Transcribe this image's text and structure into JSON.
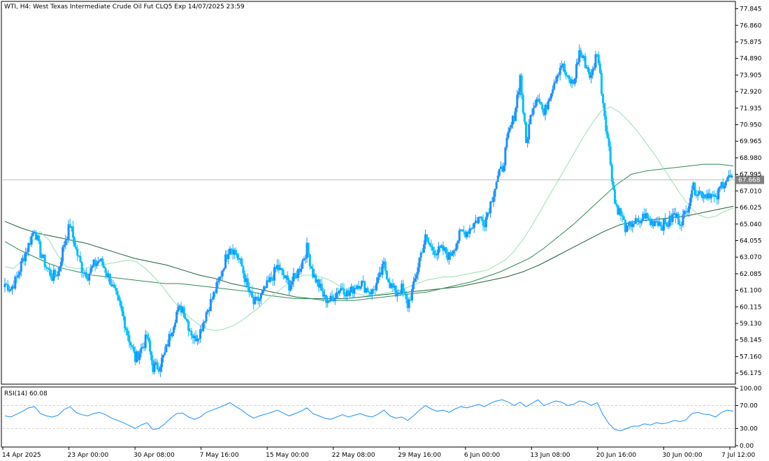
{
  "header": {
    "title": "WTI, H4:  West Texas Intermediate Crude Oil Fut CLQ5 Exp 14/07/2025 23:59"
  },
  "rsi_panel": {
    "label": "RSI(14) 60.08"
  },
  "colors": {
    "bull": "#1e90ff",
    "bear": "#00bfff",
    "ma_fast": "#98e0b0",
    "ma_mid": "#2e8b57",
    "ma_slow": "#1f5f3a",
    "rsi": "#1e90ff",
    "price_line": "#a9a9a9",
    "last_price_bg": "#808080"
  },
  "chart_data": [
    {
      "type": "candlestick",
      "name": "WTI H4",
      "ylim": [
        55.6,
        78.2
      ],
      "y_ticks": [
        "77.845",
        "76.860",
        "75.875",
        "74.890",
        "73.905",
        "72.920",
        "71.935",
        "70.950",
        "69.965",
        "68.980",
        "67.995",
        "67.010",
        "66.025",
        "65.040",
        "64.055",
        "63.070",
        "62.085",
        "61.100",
        "60.115",
        "59.130",
        "58.145",
        "57.160",
        "56.175"
      ],
      "last_price": "67.668",
      "x_tick_labels": [
        "14 Apr 2025",
        "23 Apr 00:00",
        "30 Apr 08:00",
        "7 May 16:00",
        "15 May 00:00",
        "22 May 08:00",
        "29 May 16:00",
        "6 Jun 00:00",
        "13 Jun 08:00",
        "20 Jun 16:00",
        "30 Jun 00:00",
        "7 Jul 12:00"
      ],
      "close_path": [
        61.5,
        61.2,
        61.8,
        62.9,
        63.8,
        64.8,
        63.3,
        62.5,
        61.9,
        62.2,
        63.9,
        65.0,
        63.5,
        62.4,
        62.0,
        62.6,
        62.9,
        62.3,
        61.5,
        60.5,
        59.5,
        58.2,
        57.0,
        57.6,
        58.3,
        56.5,
        56.6,
        57.3,
        58.6,
        59.8,
        60.1,
        59.0,
        58.2,
        58.7,
        59.8,
        60.6,
        61.5,
        62.7,
        63.8,
        63.3,
        62.5,
        61.2,
        60.3,
        60.6,
        61.2,
        61.8,
        62.5,
        62.0,
        61.4,
        61.9,
        62.6,
        63.6,
        62.1,
        61.4,
        60.6,
        60.5,
        61.0,
        61.3,
        60.8,
        61.3,
        61.6,
        61.2,
        61.0,
        61.6,
        62.6,
        61.5,
        60.9,
        61.2,
        60.2,
        61.3,
        63.0,
        64.2,
        63.6,
        63.4,
        63.5,
        63.1,
        63.8,
        64.5,
        64.6,
        65.0,
        65.4,
        65.2,
        66.3,
        67.6,
        68.4,
        70.3,
        71.5,
        73.8,
        69.8,
        71.9,
        72.8,
        71.5,
        72.8,
        73.8,
        74.6,
        73.6,
        73.4,
        75.3,
        74.6,
        73.7,
        75.4,
        72.3,
        69.5,
        66.3,
        65.6,
        64.6,
        65.2,
        65.0,
        65.6,
        65.1,
        65.3,
        65.0,
        65.1,
        65.6,
        65.2,
        65.7,
        67.2,
        67.0,
        66.8,
        66.9,
        66.4,
        67.4,
        67.8,
        67.7
      ],
      "ma_fast_path": [
        62.5,
        62.4,
        62.9,
        63.9,
        64.6,
        64.1,
        63.2,
        62.5,
        62.4,
        62.4,
        62.5,
        62.6,
        62.7,
        62.8,
        62.9,
        62.8,
        62.4,
        61.9,
        61.3,
        60.6,
        60.0,
        59.5,
        59.1,
        58.8,
        58.7,
        58.8,
        59.0,
        59.3,
        59.7,
        60.1,
        60.6,
        61.0,
        61.4,
        61.8,
        62.0,
        62.0,
        61.9,
        61.7,
        61.4,
        61.1,
        60.9,
        60.8,
        60.8,
        60.9,
        61.0,
        61.1,
        61.3,
        61.5,
        61.7,
        61.8,
        61.9,
        61.9,
        62.0,
        62.1,
        62.2,
        62.3,
        62.6,
        62.9,
        63.4,
        64.1,
        64.9,
        65.8,
        66.7,
        67.6,
        68.5,
        69.4,
        70.3,
        71.1,
        71.8,
        72.0,
        71.7,
        71.2,
        70.6,
        69.9,
        69.2,
        68.4,
        67.6,
        66.8,
        66.1,
        65.6,
        65.4,
        65.5,
        65.8,
        66.0
      ],
      "ma_mid_path": [
        64.0,
        63.5,
        63.1,
        62.7,
        62.4,
        62.2,
        62.0,
        61.9,
        61.8,
        61.7,
        61.6,
        61.5,
        61.5,
        61.4,
        61.3,
        61.2,
        61.1,
        61.0,
        60.8,
        60.7,
        60.6,
        60.6,
        60.5,
        60.5,
        60.5,
        60.6,
        60.7,
        60.8,
        60.9,
        61.0,
        61.2,
        61.4,
        61.6,
        61.9,
        62.2,
        62.6,
        63.0,
        63.6,
        64.3,
        65.0,
        65.8,
        66.6,
        67.4,
        68.0,
        68.2,
        68.3,
        68.4,
        68.5,
        68.6,
        68.6,
        68.5
      ],
      "ma_slow_path": [
        65.2,
        64.8,
        64.5,
        64.3,
        64.1,
        63.9,
        63.6,
        63.3,
        63.0,
        62.8,
        62.6,
        62.3,
        62.0,
        61.8,
        61.5,
        61.3,
        61.1,
        60.9,
        60.7,
        60.6,
        60.6,
        60.6,
        60.7,
        60.8,
        60.9,
        61.0,
        61.1,
        61.2,
        61.3,
        61.5,
        61.7,
        61.9,
        62.2,
        62.6,
        63.1,
        63.6,
        64.1,
        64.6,
        65.0,
        65.2,
        65.3,
        65.4,
        65.5,
        65.7,
        65.9,
        66.1
      ]
    },
    {
      "type": "line",
      "name": "RSI(14)",
      "ylim": [
        0,
        100
      ],
      "y_ticks": [
        "100.00",
        "70.00",
        "30.00",
        "0.00"
      ],
      "levels": [
        70,
        30
      ],
      "values": [
        52,
        50,
        55,
        60,
        66,
        68,
        56,
        52,
        50,
        53,
        63,
        68,
        58,
        54,
        52,
        56,
        58,
        54,
        48,
        44,
        40,
        35,
        30,
        36,
        40,
        28,
        30,
        38,
        48,
        56,
        57,
        50,
        46,
        50,
        58,
        62,
        66,
        70,
        75,
        68,
        62,
        54,
        48,
        52,
        55,
        58,
        62,
        57,
        52,
        56,
        60,
        66,
        56,
        52,
        48,
        46,
        50,
        54,
        50,
        53,
        56,
        52,
        50,
        55,
        62,
        52,
        48,
        50,
        44,
        52,
        62,
        70,
        64,
        60,
        62,
        58,
        64,
        68,
        66,
        69,
        72,
        68,
        74,
        78,
        80,
        76,
        70,
        76,
        68,
        74,
        80,
        70,
        74,
        78,
        76,
        70,
        72,
        78,
        76,
        70,
        75,
        54,
        38,
        28,
        26,
        30,
        34,
        34,
        38,
        36,
        40,
        38,
        40,
        44,
        42,
        45,
        56,
        58,
        55,
        54,
        50,
        58,
        62,
        60
      ]
    }
  ]
}
